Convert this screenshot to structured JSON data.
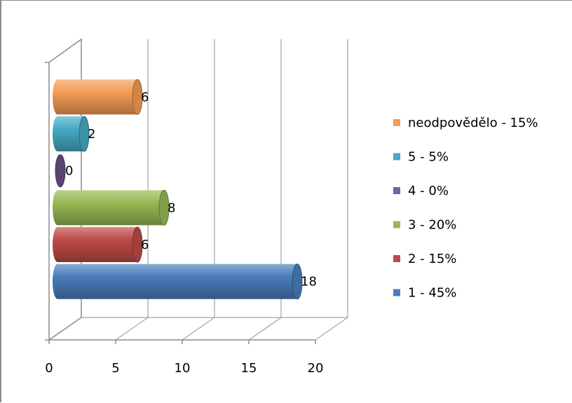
{
  "chart_data": {
    "type": "bar",
    "orientation": "horizontal",
    "style": "3d-cylinder",
    "title": "",
    "xlabel": "",
    "ylabel": "",
    "xlim": [
      0,
      20
    ],
    "x_ticks": [
      "0",
      "5",
      "10",
      "15",
      "20"
    ],
    "grid": true,
    "legend_position": "right",
    "series": [
      {
        "name": "1 - 45%",
        "value": 18,
        "label": "18",
        "color": "#4a7ebb"
      },
      {
        "name": "2 - 15%",
        "value": 6,
        "label": "6",
        "color": "#be4b48"
      },
      {
        "name": "3 - 20%",
        "value": 8,
        "label": "8",
        "color": "#98b954"
      },
      {
        "name": "4 - 0%",
        "value": 0,
        "label": "0",
        "color": "#7d60a0"
      },
      {
        "name": "5 - 5%",
        "value": 2,
        "label": "2",
        "color": "#46aac5"
      },
      {
        "name": "neodpovědělo - 15%",
        "value": 6,
        "label": "6",
        "color": "#f59d56"
      }
    ]
  }
}
